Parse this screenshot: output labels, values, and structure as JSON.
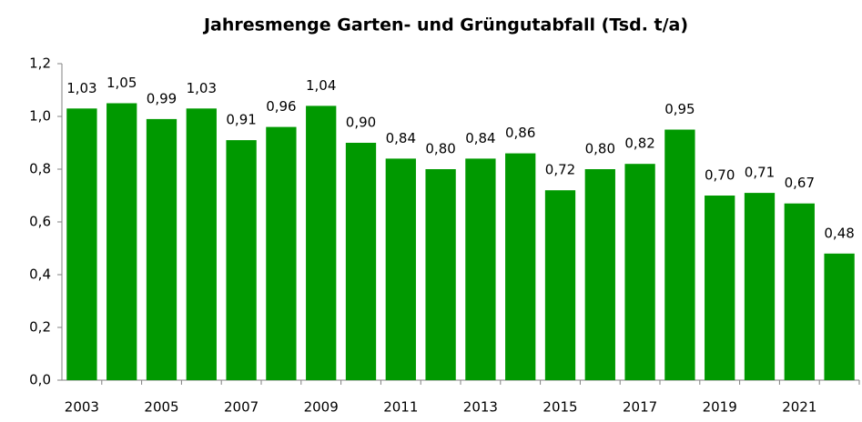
{
  "chart_data": {
    "type": "bar",
    "title": "Jahresmenge Garten- und Grüngutabfall (Tsd. t/a)",
    "categories": [
      "2003",
      null,
      "2005",
      null,
      "2007",
      null,
      "2009",
      null,
      "2011",
      null,
      "2013",
      null,
      "2015",
      null,
      "2017",
      null,
      "2019",
      null,
      "2021",
      null
    ],
    "values": [
      1.03,
      1.05,
      0.99,
      1.03,
      0.91,
      0.96,
      1.04,
      0.9,
      0.84,
      0.8,
      0.84,
      0.86,
      0.72,
      0.8,
      0.82,
      0.95,
      0.7,
      0.71,
      0.67,
      0.48
    ],
    "value_labels": [
      "1,03",
      "1,05",
      "0,99",
      "1,03",
      "0,91",
      "0,96",
      "1,04",
      "0,90",
      "0,84",
      "0,80",
      "0,84",
      "0,86",
      "0,72",
      "0,80",
      "0,82",
      "0,95",
      "0,70",
      "0,71",
      "0,67",
      "0,48"
    ],
    "color": "#009900",
    "ylim": [
      0,
      1.2
    ],
    "yticks": [
      {
        "value": 0,
        "label": "0,0"
      },
      {
        "value": 0.2,
        "label": "0,2"
      },
      {
        "value": 0.4,
        "label": "0,4"
      },
      {
        "value": 0.6,
        "label": "0,6"
      },
      {
        "value": 0.8,
        "label": "0,8"
      },
      {
        "value": 1,
        "label": "1,0"
      },
      {
        "value": 1.2,
        "label": "1,2"
      }
    ],
    "grid": false
  }
}
